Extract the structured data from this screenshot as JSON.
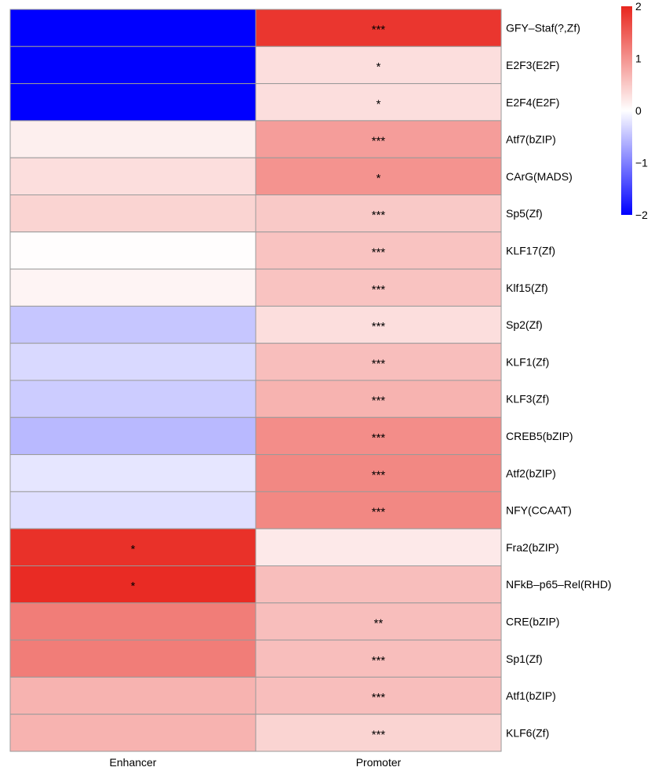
{
  "chart_data": {
    "type": "heatmap",
    "columns": [
      "Enhancer",
      "Promoter"
    ],
    "rows": [
      "GFY–Staf(?,Zf)",
      "E2F3(E2F)",
      "E2F4(E2F)",
      "Atf7(bZIP)",
      "CArG(MADS)",
      "Sp5(Zf)",
      "KLF17(Zf)",
      "Klf15(Zf)",
      "Sp2(Zf)",
      "KLF1(Zf)",
      "KLF3(Zf)",
      "CREB5(bZIP)",
      "Atf2(bZIP)",
      "NFY(CCAAT)",
      "Fra2(bZIP)",
      "NFkB–p65–Rel(RHD)",
      "CRE(bZIP)",
      "Sp1(Zf)",
      "Atf1(bZIP)",
      "KLF6(Zf)"
    ],
    "values": [
      [
        -2.0,
        1.85
      ],
      [
        -2.0,
        0.3
      ],
      [
        -2.0,
        0.3
      ],
      [
        0.15,
        0.9
      ],
      [
        0.3,
        1.0
      ],
      [
        0.4,
        0.5
      ],
      [
        0.02,
        0.55
      ],
      [
        0.1,
        0.55
      ],
      [
        -0.45,
        0.3
      ],
      [
        -0.3,
        0.6
      ],
      [
        -0.4,
        0.7
      ],
      [
        -0.55,
        1.05
      ],
      [
        -0.2,
        1.1
      ],
      [
        -0.25,
        1.1
      ],
      [
        1.9,
        0.2
      ],
      [
        1.95,
        0.6
      ],
      [
        1.2,
        0.6
      ],
      [
        1.2,
        0.6
      ],
      [
        0.7,
        0.6
      ],
      [
        0.7,
        0.4
      ]
    ],
    "significance": [
      [
        "",
        "***"
      ],
      [
        "",
        "*"
      ],
      [
        "",
        "*"
      ],
      [
        "",
        "***"
      ],
      [
        "",
        "*"
      ],
      [
        "",
        "***"
      ],
      [
        "",
        "***"
      ],
      [
        "",
        "***"
      ],
      [
        "",
        "***"
      ],
      [
        "",
        "***"
      ],
      [
        "",
        "***"
      ],
      [
        "",
        "***"
      ],
      [
        "",
        "***"
      ],
      [
        "",
        "***"
      ],
      [
        "*",
        ""
      ],
      [
        "*",
        ""
      ],
      [
        "",
        "**"
      ],
      [
        "",
        "***"
      ],
      [
        "",
        "***"
      ],
      [
        "",
        "***"
      ]
    ],
    "color_scale": {
      "min": -2,
      "max": 2,
      "low_color": "#0000ff",
      "mid_color": "#ffffff",
      "high_color": "#e8261e",
      "ticks": [
        "2",
        "1",
        "0",
        "−1",
        "−2"
      ]
    }
  }
}
